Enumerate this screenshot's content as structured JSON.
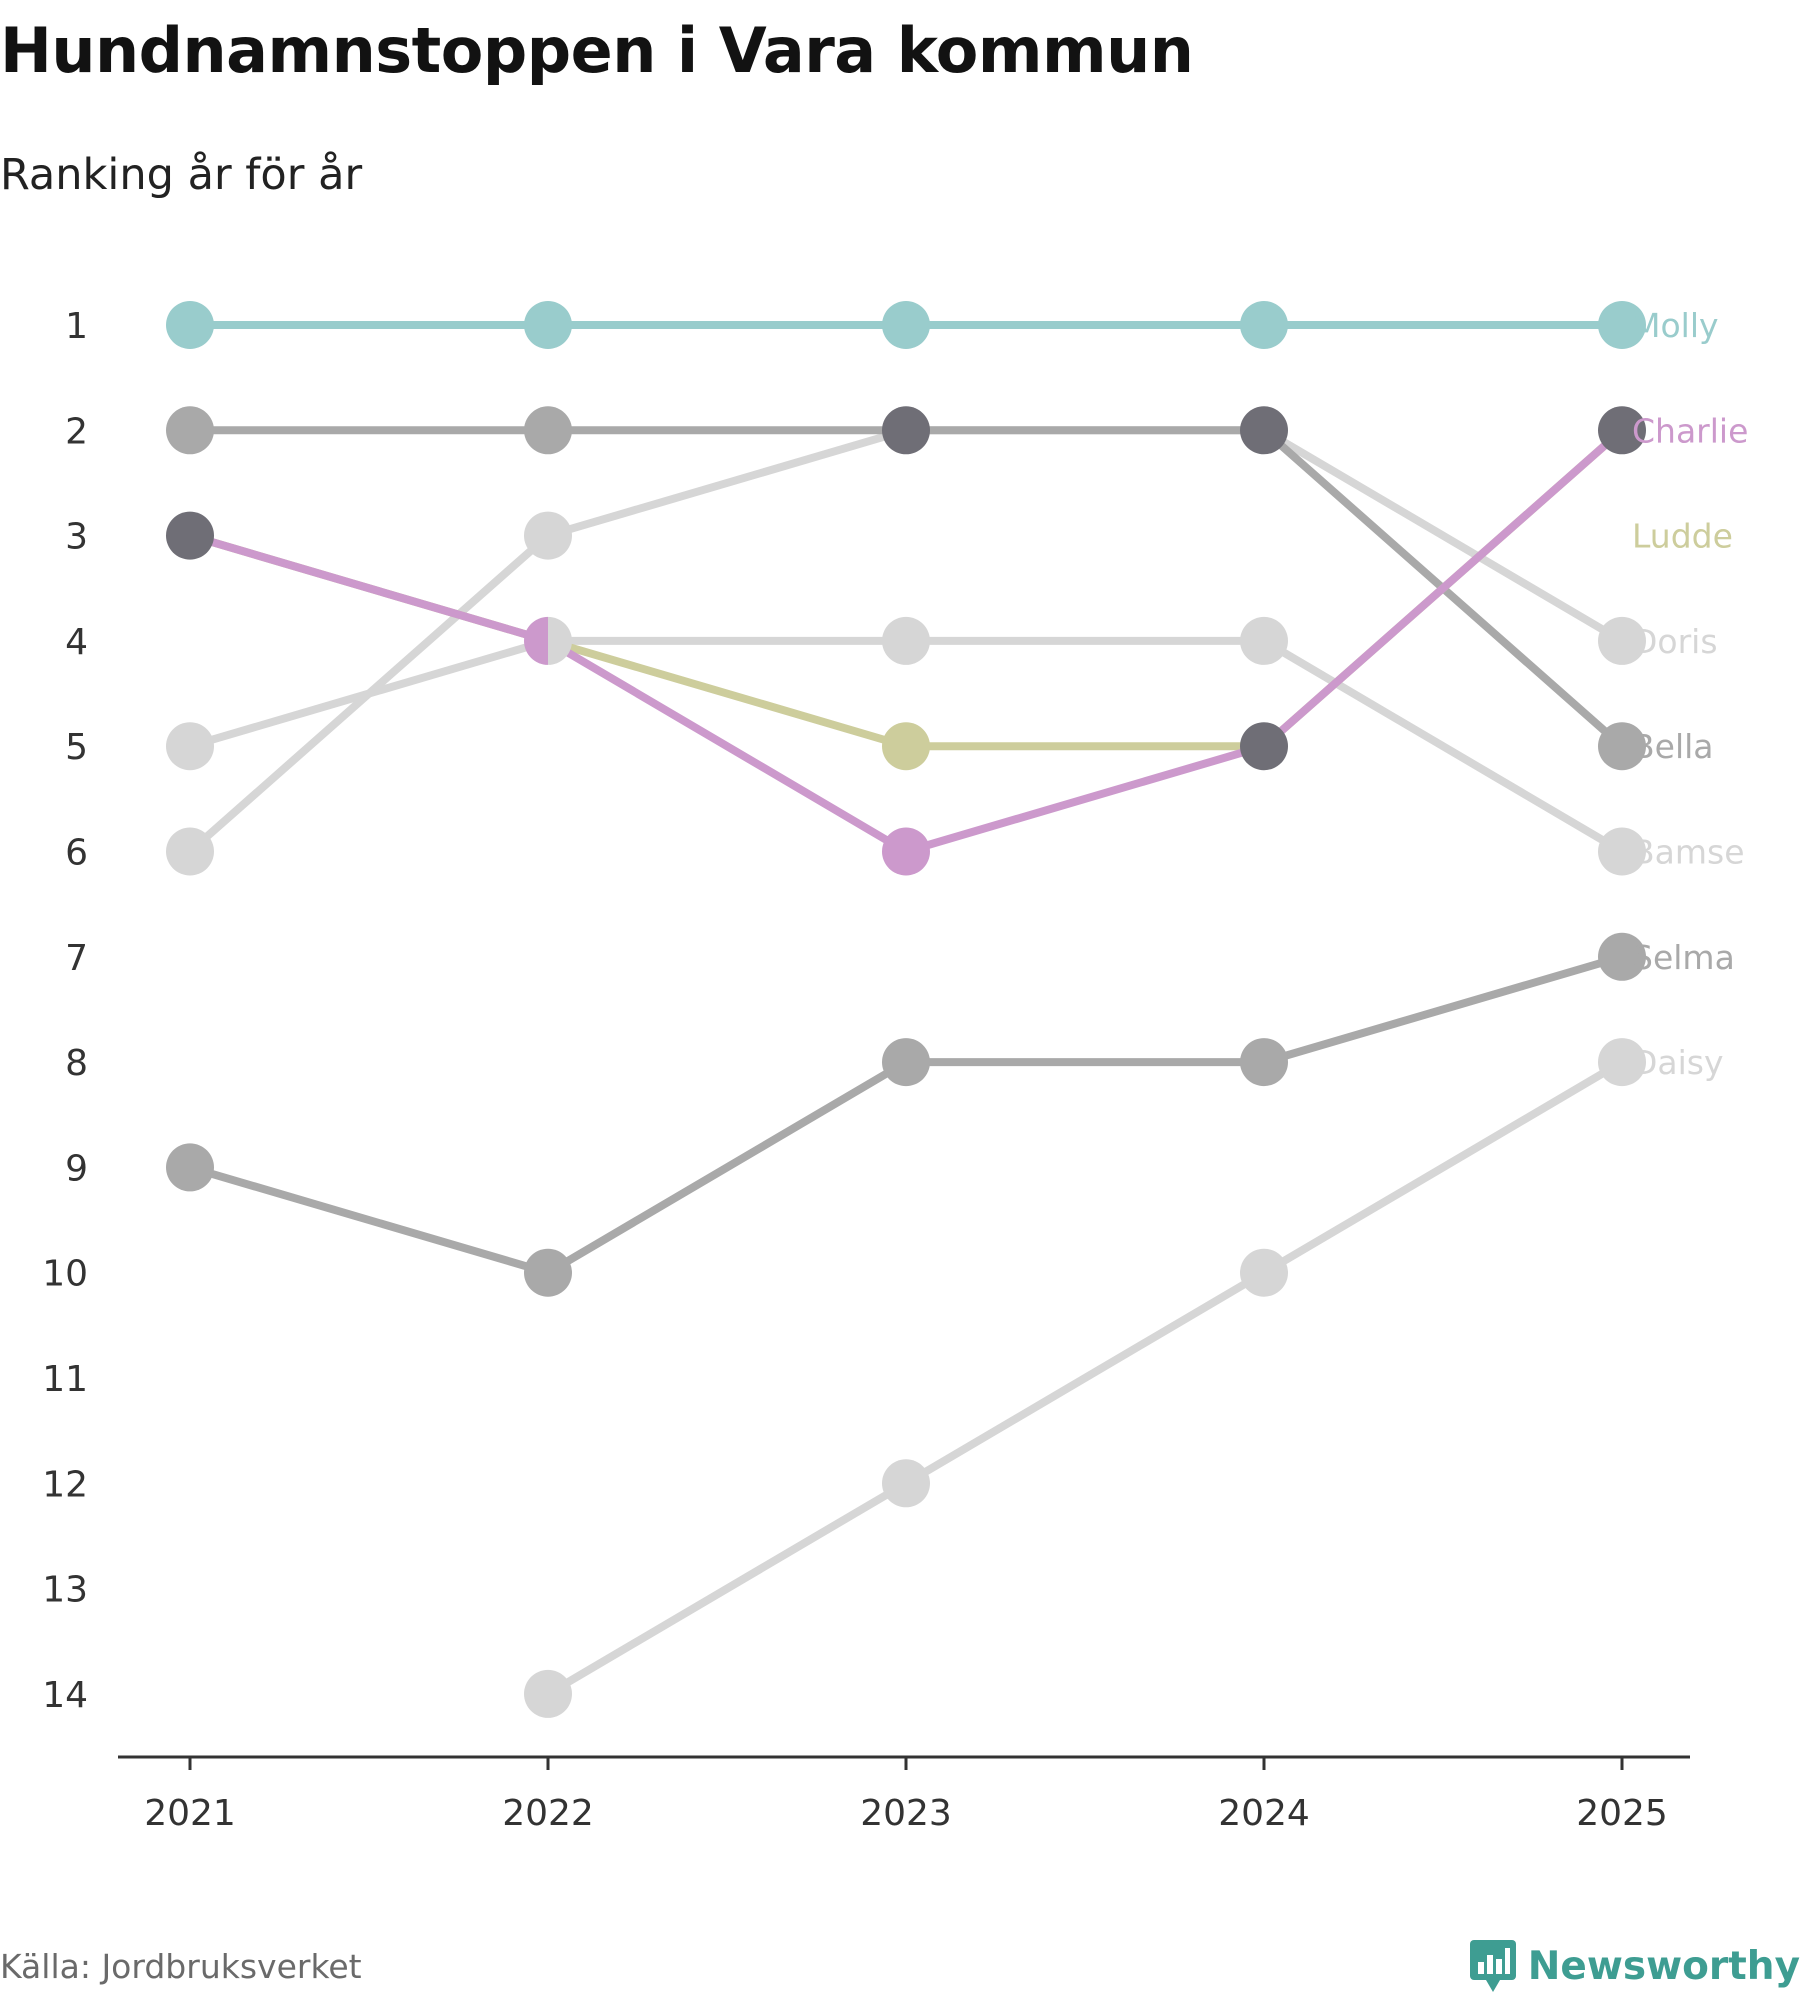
{
  "chart_data": {
    "type": "line",
    "title": "Hundnamnstoppen i Vara kommun",
    "subtitle": "Ranking år för år",
    "xlabel": "",
    "ylabel": "",
    "x": [
      "2021",
      "2022",
      "2023",
      "2024",
      "2025"
    ],
    "y_ticks": [
      "1",
      "2",
      "3",
      "4",
      "5",
      "6",
      "7",
      "8",
      "9",
      "10",
      "11",
      "12",
      "13",
      "14"
    ],
    "ylim": [
      1,
      14
    ],
    "y_reversed": true,
    "series": [
      {
        "name": "Daisy",
        "color": "#d6d6d6",
        "values": [
          null,
          14,
          12,
          10,
          8
        ]
      },
      {
        "name": "Bamse",
        "color": "#d6d6d6",
        "values": [
          5,
          4,
          4,
          4,
          6
        ]
      },
      {
        "name": "Doris",
        "color": "#d6d6d6",
        "values": [
          6,
          3,
          2,
          2,
          4
        ]
      },
      {
        "name": "Selma",
        "color": "#a9a9a9",
        "values": [
          9,
          10,
          8,
          8,
          7
        ]
      },
      {
        "name": "Bella",
        "color": "#a9a9a9",
        "values": [
          2,
          2,
          2,
          2,
          5
        ]
      },
      {
        "name": "Ludde",
        "color": "#cdcd9c",
        "values": [
          3,
          4,
          5,
          5,
          2
        ]
      },
      {
        "name": "Charlie",
        "color": "#cc99cc",
        "values": [
          3,
          4,
          6,
          5,
          2
        ]
      },
      {
        "name": "Molly",
        "color": "#99cccc",
        "values": [
          1,
          1,
          1,
          1,
          1
        ]
      }
    ],
    "shared_point_color": "#6f6e76",
    "end_labels": [
      {
        "name": "Molly",
        "rank": 1
      },
      {
        "name": "Charlie",
        "rank": 2
      },
      {
        "name": "Ludde",
        "rank": 3
      },
      {
        "name": "Doris",
        "rank": 4
      },
      {
        "name": "Bella",
        "rank": 5
      },
      {
        "name": "Bamse",
        "rank": 6
      },
      {
        "name": "Selma",
        "rank": 7
      },
      {
        "name": "Daisy",
        "rank": 8
      }
    ]
  },
  "footer": {
    "source": "Källa: Jordbruksverket",
    "brand": "Newsworthy",
    "brand_color": "#3e9d92"
  }
}
